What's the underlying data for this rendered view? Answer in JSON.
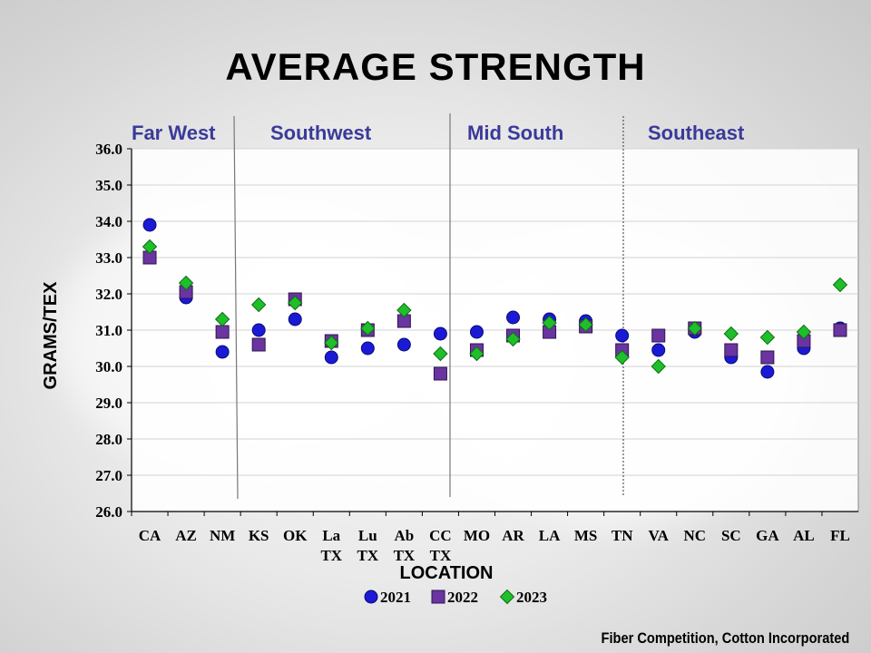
{
  "chart_data": {
    "type": "scatter",
    "title": "AVERAGE STRENGTH",
    "xlabel": "LOCATION",
    "ylabel": "GRAMS/TEX",
    "ylim": [
      26.0,
      36.0
    ],
    "y_ticks": [
      "26.0",
      "27.0",
      "28.0",
      "29.0",
      "30.0",
      "31.0",
      "32.0",
      "33.0",
      "34.0",
      "35.0",
      "36.0"
    ],
    "categories": [
      [
        "CA"
      ],
      [
        "AZ"
      ],
      [
        "NM"
      ],
      [
        "KS"
      ],
      [
        "OK"
      ],
      [
        "La",
        "TX"
      ],
      [
        "Lu",
        "TX"
      ],
      [
        "Ab",
        "TX"
      ],
      [
        "CC",
        "TX"
      ],
      [
        "MO"
      ],
      [
        "AR"
      ],
      [
        "LA"
      ],
      [
        "MS"
      ],
      [
        "TN"
      ],
      [
        "VA"
      ],
      [
        "NC"
      ],
      [
        "SC"
      ],
      [
        "GA"
      ],
      [
        "AL"
      ],
      [
        "FL"
      ]
    ],
    "regions": [
      "Far West",
      "Southwest",
      "Mid South",
      "Southeast"
    ],
    "series": [
      {
        "name": "2021",
        "marker": "circle",
        "color": "#1a1ad6",
        "values": [
          33.9,
          31.9,
          30.4,
          31.0,
          31.3,
          30.25,
          30.5,
          30.6,
          30.9,
          30.95,
          31.35,
          31.3,
          31.25,
          30.85,
          30.45,
          30.95,
          30.25,
          29.85,
          30.5,
          31.05
        ]
      },
      {
        "name": "2022",
        "marker": "square",
        "color": "#6a35a0",
        "values": [
          33.0,
          32.05,
          30.95,
          30.6,
          31.85,
          30.7,
          31.0,
          31.25,
          29.8,
          30.45,
          30.85,
          30.95,
          31.1,
          30.45,
          30.85,
          31.05,
          30.45,
          30.25,
          30.7,
          31.0
        ]
      },
      {
        "name": "2023",
        "marker": "diamond",
        "color": "#1fbf2a",
        "values": [
          33.3,
          32.3,
          31.3,
          31.7,
          31.75,
          30.65,
          31.05,
          31.55,
          30.35,
          30.35,
          30.75,
          31.2,
          31.15,
          30.25,
          30.0,
          31.05,
          30.9,
          30.8,
          30.95,
          32.25
        ]
      }
    ]
  },
  "footer": "Fiber Competition, Cotton Incorporated"
}
